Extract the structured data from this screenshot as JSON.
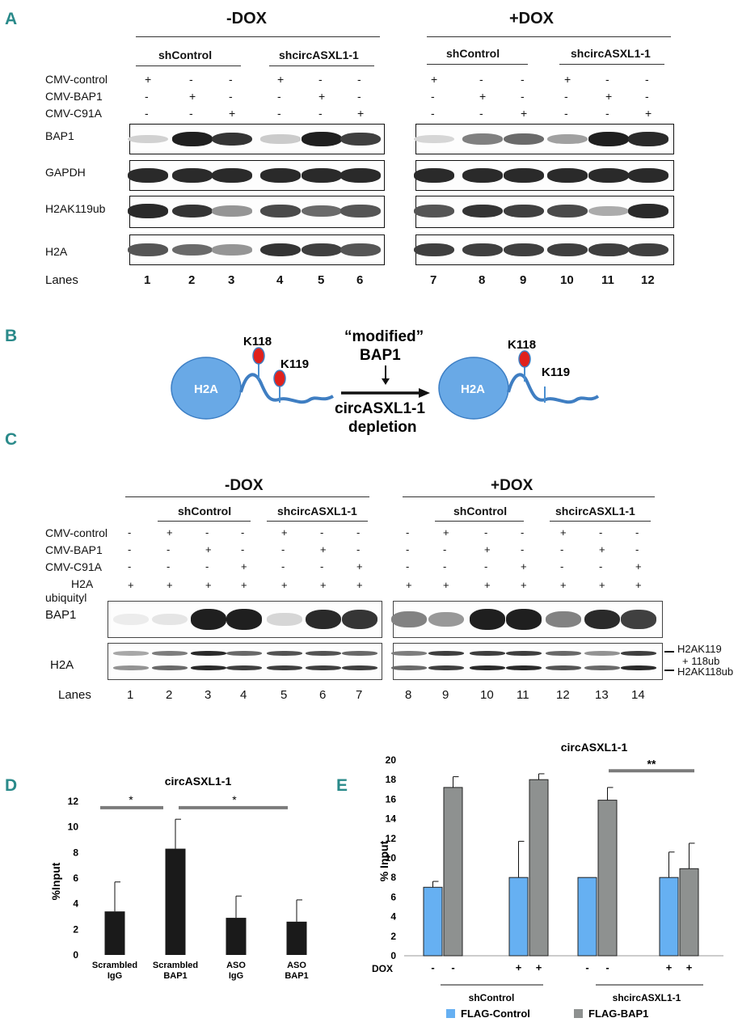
{
  "panel_labels": [
    "A",
    "B",
    "C",
    "D",
    "E"
  ],
  "panelA": {
    "dox_minus": "-DOX",
    "dox_plus": "+DOX",
    "group_shcontrol": "shControl",
    "group_shcirc": "shcircASXL1-1",
    "rows": [
      "CMV-control",
      "CMV-BAP1",
      "CMV-C91A"
    ],
    "signs_left": [
      [
        "+",
        "-",
        "-",
        "+",
        "-",
        "-"
      ],
      [
        "-",
        "+",
        "-",
        "-",
        "+",
        "-"
      ],
      [
        "-",
        "-",
        "+",
        "-",
        "-",
        "+"
      ]
    ],
    "signs_right": [
      [
        "+",
        "-",
        "-",
        "+",
        "-",
        "-"
      ],
      [
        "-",
        "+",
        "-",
        "-",
        "+",
        "-"
      ],
      [
        "-",
        "-",
        "+",
        "-",
        "-",
        "+"
      ]
    ],
    "blots": [
      "BAP1",
      "GAPDH",
      "H2AK119ub",
      "H2A"
    ],
    "lanes_label": "Lanes",
    "lanes": [
      "1",
      "2",
      "3",
      "4",
      "5",
      "6",
      "7",
      "8",
      "9",
      "10",
      "11",
      "12"
    ]
  },
  "panelB": {
    "h2a": "H2A",
    "k118": "K118",
    "k119": "K119",
    "modified": "“modified”",
    "bap1": "BAP1",
    "circ": "circASXL1-1",
    "depletion": "depletion"
  },
  "panelC": {
    "dox_minus": "-DOX",
    "dox_plus": "+DOX",
    "group_shcontrol": "shControl",
    "group_shcirc": "shcircASXL1-1",
    "rows": [
      "CMV-control",
      "CMV-BAP1",
      "CMV-C91A"
    ],
    "h2a_row_1": "H2A",
    "h2a_row_2": "ubiquityl",
    "signs_left": [
      [
        "-",
        "+",
        "-",
        "-",
        "+",
        "-",
        "-"
      ],
      [
        "-",
        "-",
        "+",
        "-",
        "-",
        "+",
        "-"
      ],
      [
        "-",
        "-",
        "-",
        "+",
        "-",
        "-",
        "+"
      ],
      [
        "+",
        "+",
        "+",
        "+",
        "+",
        "+",
        "+"
      ]
    ],
    "signs_right": [
      [
        "-",
        "+",
        "-",
        "-",
        "+",
        "-",
        "-"
      ],
      [
        "-",
        "-",
        "+",
        "-",
        "-",
        "+",
        "-"
      ],
      [
        "-",
        "-",
        "-",
        "+",
        "-",
        "-",
        "+"
      ],
      [
        "+",
        "+",
        "+",
        "+",
        "+",
        "+",
        "+"
      ]
    ],
    "blots": [
      "BAP1",
      "H2A"
    ],
    "side_1a": "H2AK119",
    "side_1b": "+ 118ub",
    "side_2": "H2AK118ub",
    "lanes_label": "Lanes",
    "lanes": [
      "1",
      "2",
      "3",
      "4",
      "5",
      "6",
      "7",
      "8",
      "9",
      "10",
      "11",
      "12",
      "13",
      "14"
    ]
  },
  "chart_data": [
    {
      "type": "bar",
      "title": "circASXL1-1",
      "ylabel": "%Input",
      "categories": [
        "Scrambled IgG",
        "Scrambled BAP1",
        "ASO IgG",
        "ASO BAP1"
      ],
      "values": [
        3.4,
        8.3,
        2.9,
        2.6
      ],
      "errors": [
        2.3,
        2.3,
        1.7,
        1.7
      ],
      "ylim": [
        0,
        12
      ],
      "yticks": [
        0,
        2,
        4,
        6,
        8,
        10,
        12
      ],
      "significance": [
        "*",
        "*"
      ],
      "color": "#1a1a1a"
    },
    {
      "type": "bar",
      "title": "circASXL1-1",
      "ylabel": "% Input",
      "xlabel_row": "DOX",
      "dox": [
        "-",
        "-",
        "+",
        "+",
        "-",
        "-",
        "+",
        "+"
      ],
      "groups": [
        "shControl",
        "shcircASXL1-1"
      ],
      "series": [
        {
          "name": "FLAG-Control",
          "values": [
            7.0,
            8.0,
            8.0,
            8.0
          ],
          "errors": [
            0.6,
            3.7,
            0,
            2.6
          ],
          "color": "#66b0f2"
        },
        {
          "name": "FLAG-BAP1",
          "values": [
            17.2,
            18.0,
            15.9,
            8.9
          ],
          "errors": [
            1.1,
            0.6,
            1.3,
            2.6
          ],
          "color": "#8e9190"
        }
      ],
      "ylim": [
        0,
        20
      ],
      "yticks": [
        0,
        2,
        4,
        6,
        8,
        10,
        12,
        14,
        16,
        18,
        20
      ],
      "significance": [
        "**"
      ]
    }
  ]
}
